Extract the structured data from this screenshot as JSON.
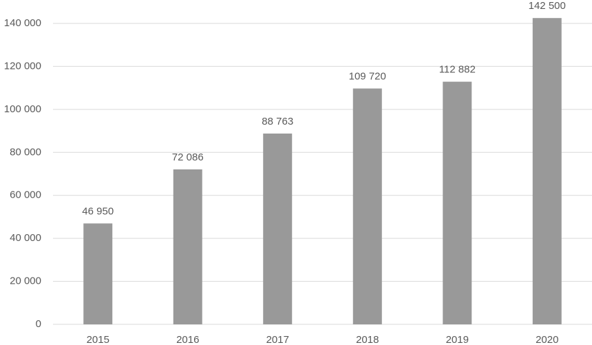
{
  "chart_data": {
    "type": "bar",
    "categories": [
      "2015",
      "2016",
      "2017",
      "2018",
      "2019",
      "2020"
    ],
    "values": [
      46950,
      72086,
      88763,
      109720,
      112882,
      142500
    ],
    "value_labels": [
      "46 950",
      "72 086",
      "88 763",
      "109 720",
      "112 882",
      "142 500"
    ],
    "color": "#999999",
    "ylim": [
      0,
      140000
    ],
    "yticks": [
      0,
      {
        "value": 20000,
        "label": "20 000"
      },
      {
        "value": 40000,
        "label": "40 000"
      },
      {
        "value": 60000,
        "label": "60 000"
      },
      {
        "value": 80000,
        "label": "80 000"
      },
      {
        "value": 100000,
        "label": "100 000"
      },
      {
        "value": 120000,
        "label": "120 000"
      },
      {
        "value": 140000,
        "label": "140 000"
      }
    ],
    "grid": true
  }
}
